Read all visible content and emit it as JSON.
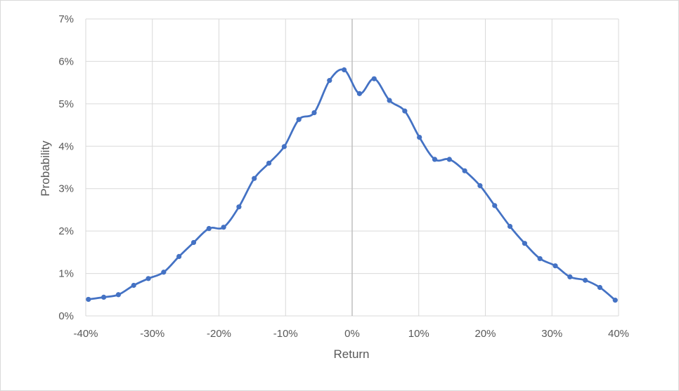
{
  "chart_data": {
    "type": "line",
    "title": "",
    "xlabel": "Return",
    "ylabel": "Probability",
    "xlim": [
      -0.4,
      0.4
    ],
    "ylim": [
      0,
      0.07
    ],
    "grid": true,
    "smooth": true,
    "markers": true,
    "x_ticks": [
      -0.4,
      -0.3,
      -0.2,
      -0.1,
      0.0,
      0.1,
      0.2,
      0.3,
      0.4
    ],
    "x_tick_labels": [
      "-40%",
      "-30%",
      "-20%",
      "-10%",
      "0%",
      "10%",
      "20%",
      "30%",
      "40%"
    ],
    "y_ticks": [
      0,
      0.01,
      0.02,
      0.03,
      0.04,
      0.05,
      0.06,
      0.07
    ],
    "y_tick_labels": [
      "0%",
      "1%",
      "2%",
      "3%",
      "4%",
      "5%",
      "6%",
      "7%"
    ],
    "colors": {
      "line": "#4472c4",
      "grid": "#d9d9d9",
      "zero_axis": "#bfbfbf",
      "text": "#595959"
    },
    "series": [
      {
        "x": [
          -0.396,
          -0.373,
          -0.351,
          -0.328,
          -0.306,
          -0.283,
          -0.26,
          -0.238,
          -0.215,
          -0.193,
          -0.17,
          -0.147,
          -0.125,
          -0.102,
          -0.08,
          -0.057,
          -0.034,
          -0.012,
          0.011,
          0.033,
          0.056,
          0.079,
          0.101,
          0.124,
          0.146,
          0.169,
          0.192,
          0.214,
          0.237,
          0.259,
          0.282,
          0.305,
          0.327,
          0.35,
          0.372,
          0.395
        ],
        "y": [
          0.0039,
          0.0044,
          0.005,
          0.0072,
          0.0088,
          0.0103,
          0.014,
          0.0173,
          0.0206,
          0.0209,
          0.0257,
          0.0324,
          0.036,
          0.0399,
          0.0463,
          0.0479,
          0.0555,
          0.058,
          0.0524,
          0.0559,
          0.0508,
          0.0483,
          0.0421,
          0.0369,
          0.0369,
          0.0342,
          0.0307,
          0.026,
          0.0211,
          0.0171,
          0.0135,
          0.0118,
          0.0092,
          0.0084,
          0.0067,
          0.0037
        ]
      }
    ]
  }
}
